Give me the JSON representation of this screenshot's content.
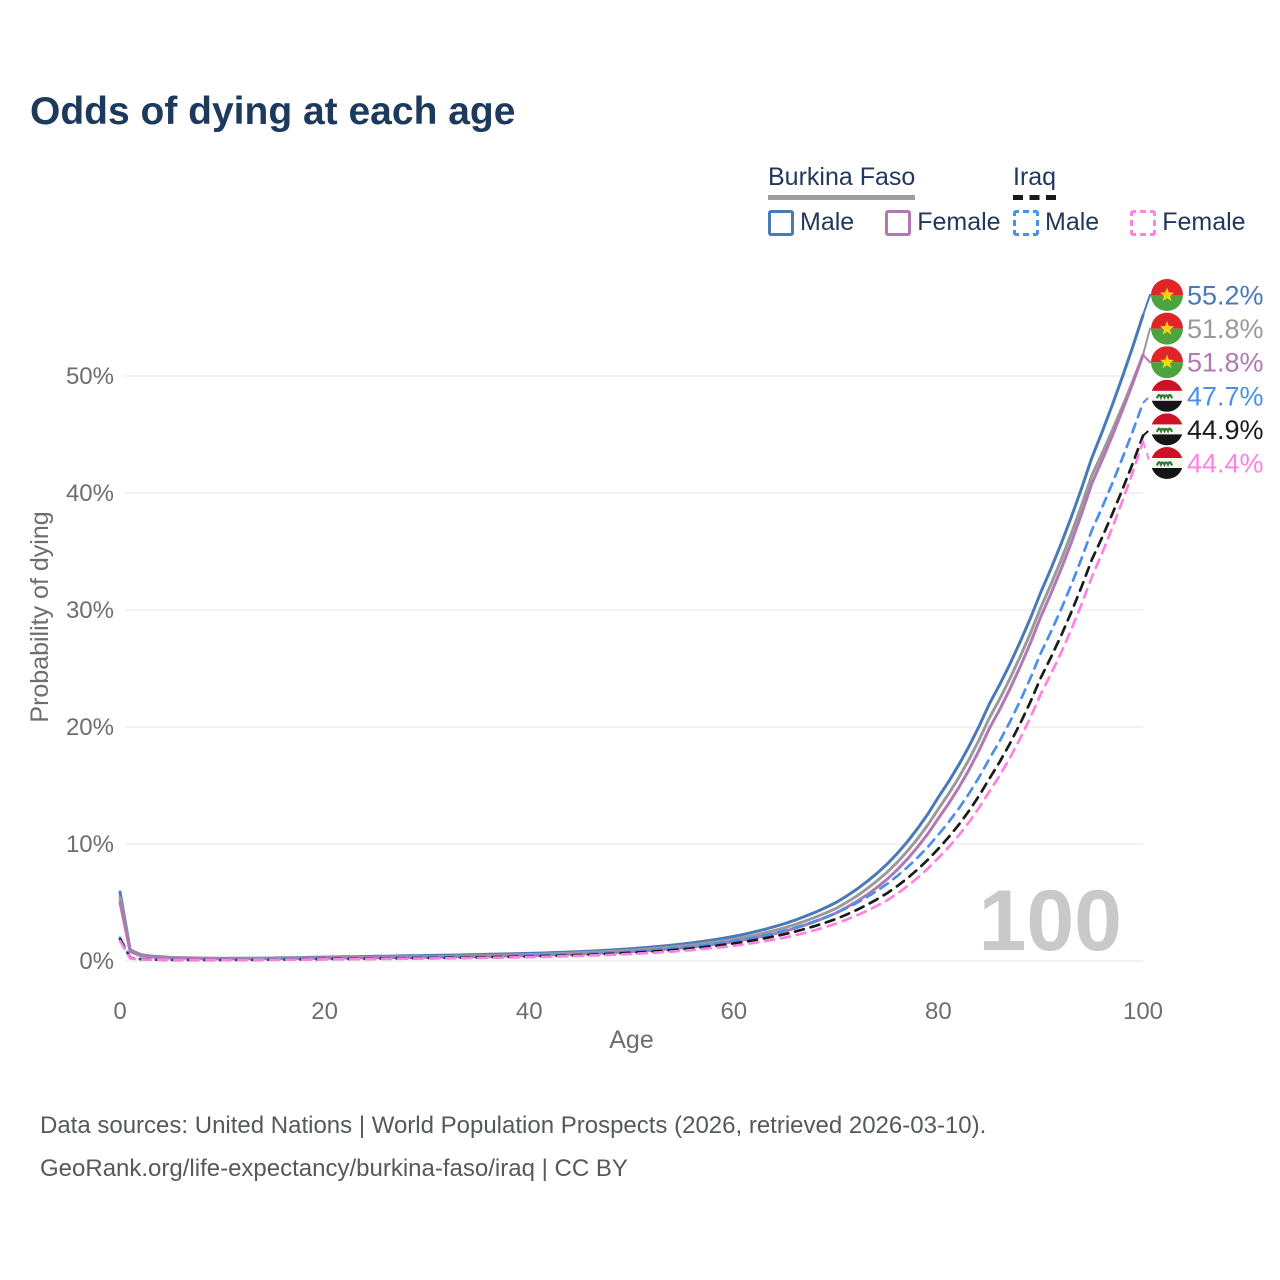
{
  "title": "Odds of dying at each age",
  "legend": {
    "groups": [
      {
        "country": "Burkina Faso",
        "underline_color": "#9e9e9e",
        "underline_style": "solid",
        "items": [
          {
            "label": "Male",
            "color": "#4a79b8",
            "dashed": false
          },
          {
            "label": "Female",
            "color": "#b278b2",
            "dashed": false
          }
        ]
      },
      {
        "country": "Iraq",
        "underline_color": "#1a1a1a",
        "underline_style": "dashed",
        "items": [
          {
            "label": "Male",
            "color": "#4a90e8",
            "dashed": true
          },
          {
            "label": "Female",
            "color": "#ff82e2",
            "dashed": true
          }
        ]
      }
    ]
  },
  "chart_data": {
    "type": "line",
    "title": "Odds of dying at each age",
    "xlabel": "Age",
    "ylabel": "Probability of dying",
    "x_ticks": [
      0,
      20,
      40,
      60,
      80,
      100
    ],
    "y_ticks": [
      "0%",
      "10%",
      "20%",
      "30%",
      "40%",
      "50%"
    ],
    "xlim": [
      0,
      100
    ],
    "ylim": [
      0,
      58
    ],
    "grid": "horizontal-only",
    "legend_position": "top-right",
    "watermark": "100",
    "ages": [
      0,
      1,
      2,
      3,
      5,
      10,
      15,
      20,
      25,
      30,
      35,
      40,
      45,
      50,
      55,
      60,
      65,
      70,
      75,
      80,
      85,
      90,
      95,
      100
    ],
    "series": [
      {
        "name": "Burkina Faso Male",
        "country": "Burkina Faso",
        "sex": "Male",
        "color": "#4a79b8",
        "dashed": false,
        "flag": "burkina-faso",
        "end_label": "55.2%",
        "values": [
          5.9,
          0.95,
          0.55,
          0.42,
          0.3,
          0.22,
          0.26,
          0.33,
          0.4,
          0.47,
          0.55,
          0.65,
          0.8,
          1.05,
          1.45,
          2.1,
          3.2,
          5.0,
          8.3,
          14.0,
          22.0,
          31.5,
          43.0,
          55.2
        ]
      },
      {
        "name": "Burkina Faso Both sexes",
        "country": "Burkina Faso",
        "sex": "Both",
        "color": "#9a9a9a",
        "dashed": false,
        "flag": "burkina-faso",
        "end_label": "51.8%",
        "values": [
          5.45,
          0.88,
          0.5,
          0.38,
          0.28,
          0.2,
          0.23,
          0.28,
          0.33,
          0.38,
          0.45,
          0.55,
          0.7,
          0.92,
          1.28,
          1.85,
          2.85,
          4.5,
          7.6,
          13.0,
          20.8,
          30.2,
          41.5,
          51.8
        ]
      },
      {
        "name": "Burkina Faso Female",
        "country": "Burkina Faso",
        "sex": "Female",
        "color": "#b278b2",
        "dashed": false,
        "flag": "burkina-faso",
        "end_label": "51.8%",
        "values": [
          5.0,
          0.8,
          0.46,
          0.35,
          0.26,
          0.19,
          0.21,
          0.25,
          0.28,
          0.32,
          0.38,
          0.47,
          0.6,
          0.8,
          1.12,
          1.65,
          2.55,
          4.1,
          7.0,
          12.2,
          19.9,
          29.4,
          40.8,
          51.8
        ]
      },
      {
        "name": "Iraq Male",
        "country": "Iraq",
        "sex": "Male",
        "color": "#4a90e8",
        "dashed": true,
        "flag": "iraq",
        "end_label": "47.7%",
        "values": [
          2.0,
          0.28,
          0.17,
          0.13,
          0.1,
          0.09,
          0.13,
          0.19,
          0.24,
          0.29,
          0.35,
          0.44,
          0.58,
          0.8,
          1.15,
          1.7,
          2.6,
          4.1,
          6.6,
          10.8,
          17.3,
          26.3,
          36.8,
          47.7
        ]
      },
      {
        "name": "Iraq Both sexes",
        "country": "Iraq",
        "sex": "Both",
        "color": "#1a1a1a",
        "dashed": true,
        "flag": "iraq",
        "end_label": "44.9%",
        "values": [
          1.85,
          0.25,
          0.15,
          0.12,
          0.09,
          0.08,
          0.11,
          0.16,
          0.2,
          0.25,
          0.3,
          0.38,
          0.5,
          0.7,
          1.0,
          1.5,
          2.3,
          3.6,
          5.8,
          9.6,
          15.6,
          24.2,
          34.3,
          44.9
        ]
      },
      {
        "name": "Iraq Female",
        "country": "Iraq",
        "sex": "Female",
        "color": "#ff82e2",
        "dashed": true,
        "flag": "iraq",
        "end_label": "44.4%",
        "values": [
          1.7,
          0.22,
          0.14,
          0.11,
          0.09,
          0.08,
          0.1,
          0.14,
          0.17,
          0.21,
          0.26,
          0.33,
          0.44,
          0.6,
          0.87,
          1.3,
          2.0,
          3.2,
          5.2,
          8.8,
          14.5,
          22.8,
          32.8,
          44.4
        ]
      }
    ],
    "colors": {
      "grid": "#e9e9e9",
      "tick_text": "#6e6e6e",
      "watermark": "#c9c9c9",
      "flag_bf_red": "#e02428",
      "flag_bf_green": "#4ca33f",
      "flag_bf_star": "#fcd116",
      "flag_iq_red": "#ce1126",
      "flag_iq_white": "#f7f7f2",
      "flag_iq_black": "#151515",
      "flag_iq_green": "#2e7d32"
    }
  },
  "footer": {
    "line1": "Data sources: United Nations | World Population Prospects (2026, retrieved 2026-03-10).",
    "line2": "GeoRank.org/life-expectancy/burkina-faso/iraq | CC BY"
  }
}
